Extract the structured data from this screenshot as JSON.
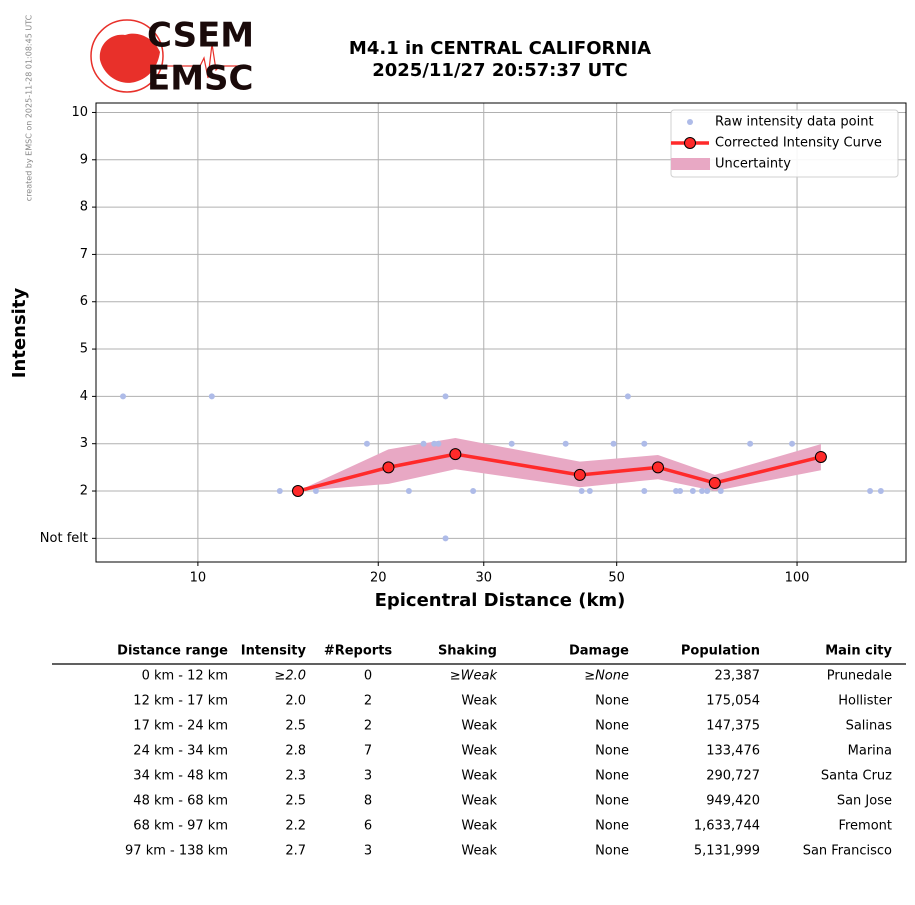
{
  "watermark": "created by EMSC on 2025-11-28 01:08:45 UTC",
  "logo": {
    "top": "CSEM",
    "bottom": "EMSC"
  },
  "chart_data": {
    "type": "scatter",
    "title": "M4.1 in CENTRAL CALIFORNIA",
    "subtitle": "2025/11/27 20:57:37 UTC",
    "x_label": "Epicentral Distance (km)",
    "y_label": "Intensity",
    "x_scale": "log",
    "grid": true,
    "legend": "upper right",
    "xlim": [
      6.76,
      152
    ],
    "xticks": [
      10,
      20,
      30,
      50,
      100
    ],
    "ylim": [
      0.5,
      10.2
    ],
    "yticks": [
      {
        "value": 1,
        "label": "Not felt"
      },
      2,
      3,
      4,
      5,
      6,
      7,
      8,
      9,
      10
    ],
    "series": [
      {
        "name": "Raw intensity data point",
        "type": "scatter",
        "color": "#aebbe8",
        "x": [
          7.5,
          10.55,
          13.7,
          15.74,
          19.15,
          22.5,
          23.8,
          24.8,
          25.2,
          25.9,
          25.9,
          28.8,
          33.4,
          41.1,
          43.7,
          45.1,
          49.4,
          52.2,
          55.6,
          55.6,
          62.8,
          63.8,
          67.0,
          69.4,
          70.8,
          74.6,
          83.5,
          98.1,
          132.4,
          138.0
        ],
        "values": [
          4,
          4,
          2,
          2,
          3,
          2,
          3,
          3,
          3,
          4,
          1,
          2,
          3,
          3,
          2,
          2,
          3,
          4,
          3,
          2,
          2,
          2,
          2,
          2,
          2,
          2,
          3,
          3,
          2,
          2
        ]
      },
      {
        "name": "Corrected Intensity Curve",
        "type": "line",
        "color": "#ff2a2a",
        "x": [
          14.69,
          20.8,
          26.9,
          43.4,
          58.6,
          72.9,
          109.6
        ],
        "values": [
          2.0,
          2.5,
          2.78,
          2.34,
          2.5,
          2.17,
          2.72
        ]
      },
      {
        "name": "Uncertainty",
        "type": "band",
        "color": "#e8a8c4",
        "x": [
          14.69,
          20.8,
          26.9,
          43.4,
          58.6,
          72.9,
          109.6
        ],
        "lower": [
          2.0,
          2.15,
          2.46,
          2.08,
          2.25,
          2.0,
          2.44
        ],
        "upper": [
          2.0,
          2.88,
          3.12,
          2.62,
          2.76,
          2.34,
          2.99
        ]
      }
    ]
  },
  "table": {
    "header": [
      "Distance range",
      "Intensity",
      "#Reports",
      "Shaking",
      "Damage",
      "Population",
      "Main city"
    ],
    "rows": [
      [
        "0 km - 12 km",
        "≥2.0",
        "0",
        "≥Weak",
        "≥None",
        "23,387",
        "Prunedale"
      ],
      [
        "12 km - 17 km",
        "2.0",
        "2",
        "Weak",
        "None",
        "175,054",
        "Hollister"
      ],
      [
        "17 km - 24 km",
        "2.5",
        "2",
        "Weak",
        "None",
        "147,375",
        "Salinas"
      ],
      [
        "24 km - 34 km",
        "2.8",
        "7",
        "Weak",
        "None",
        "133,476",
        "Marina"
      ],
      [
        "34 km - 48 km",
        "2.3",
        "3",
        "Weak",
        "None",
        "290,727",
        "Santa Cruz"
      ],
      [
        "48 km - 68 km",
        "2.5",
        "8",
        "Weak",
        "None",
        "949,420",
        "San Jose"
      ],
      [
        "68 km - 97 km",
        "2.2",
        "6",
        "Weak",
        "None",
        "1,633,744",
        "Fremont"
      ],
      [
        "97 km - 138 km",
        "2.7",
        "3",
        "Weak",
        "None",
        "5,131,999",
        "San Francisco"
      ]
    ]
  }
}
